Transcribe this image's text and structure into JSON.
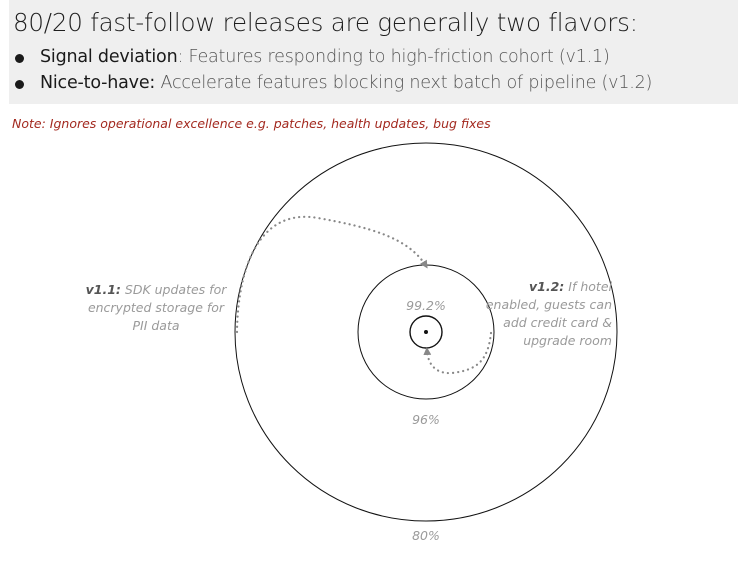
{
  "header": {
    "headline": "80/20 fast-follow releases are generally two flavors:",
    "bullets": [
      {
        "title": "Signal deviation",
        "sep": ": ",
        "text": "Features responding to high-friction cohort (v1.1)"
      },
      {
        "title": "Nice-to-have:",
        "sep": " ",
        "text": "Accelerate features blocking next batch of pipeline (v1.2)"
      }
    ]
  },
  "note": {
    "label": "Note",
    "text": ": Ignores operational excellence e.g. patches, health updates, bug fixes"
  },
  "diagram": {
    "rings": [
      {
        "label": "80%"
      },
      {
        "label": "96%"
      },
      {
        "label": "99.2%"
      }
    ],
    "callouts": {
      "v11": {
        "label": "v1.1:",
        "text": "SDK updates for encrypted storage for PII data"
      },
      "v12": {
        "label": "v1.2:",
        "text": "If hotel enabled, guests can add credit card & upgrade room"
      }
    },
    "colors": {
      "note": "#a3291f",
      "ring_label": "#9a9a9a",
      "arrow": "#888888"
    }
  }
}
